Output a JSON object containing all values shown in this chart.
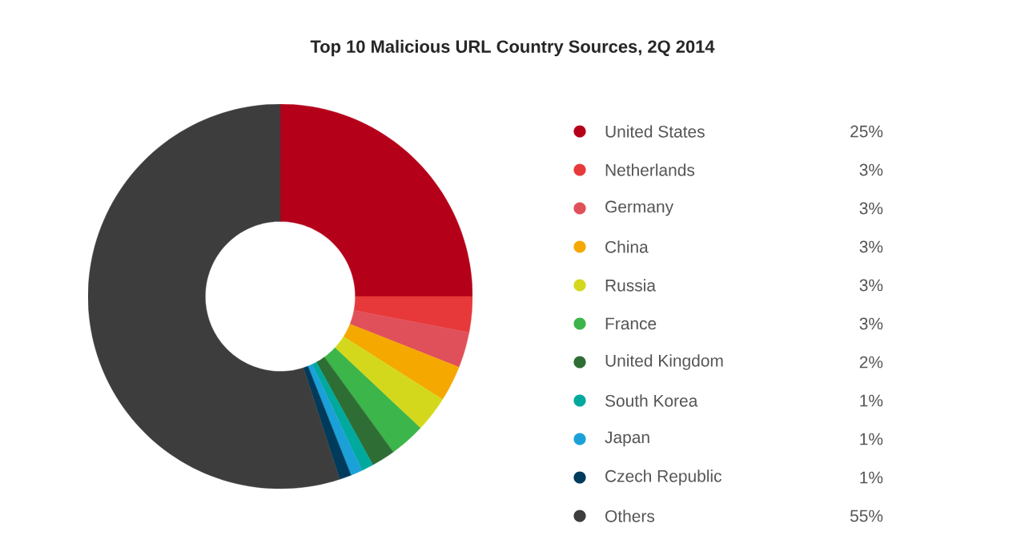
{
  "chart_data": {
    "type": "donut",
    "title": "Top 10 Malicious URL Country Sources, 2Q 2014",
    "categories": [
      "United States",
      "Netherlands",
      "Germany",
      "China",
      "Russia",
      "France",
      "United Kingdom",
      "South Korea",
      "Japan",
      "Czech Republic",
      "Others"
    ],
    "values": [
      25,
      3,
      3,
      3,
      3,
      3,
      2,
      1,
      1,
      1,
      55
    ],
    "value_labels": [
      "25%",
      "3%",
      "3%",
      "3%",
      "3%",
      "3%",
      "2%",
      "1%",
      "1%",
      "1%",
      "55%"
    ],
    "colors": [
      "#b5001a",
      "#e8393a",
      "#e0505a",
      "#f5a800",
      "#d4d81c",
      "#3cb54a",
      "#2e6e35",
      "#00a99d",
      "#1ba1d8",
      "#003b5c",
      "#3d3d3d"
    ],
    "legend": "right"
  }
}
